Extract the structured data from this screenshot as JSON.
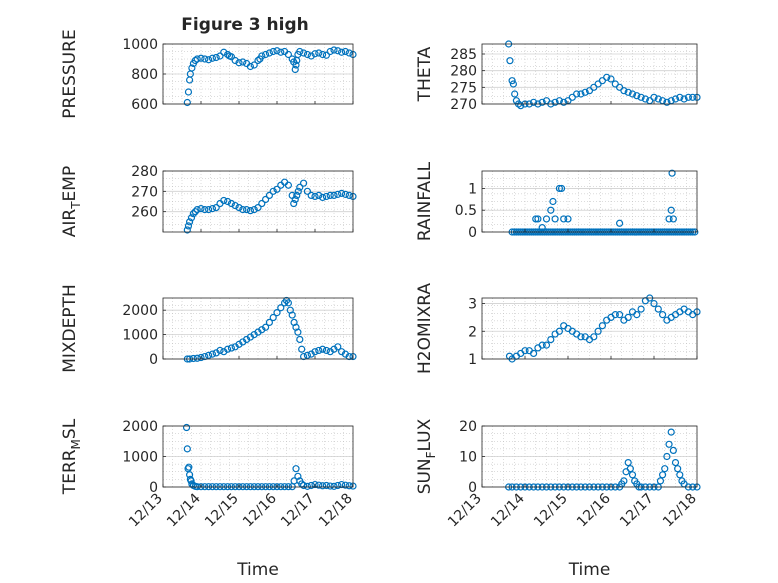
{
  "figure": {
    "title": "Figure 3 high"
  },
  "colors": {
    "marker": "#0072bd",
    "axis": "#262626",
    "grid": "#b8b8b8"
  },
  "chart_data": [
    {
      "type": "scatter",
      "title": "Figure 3 high",
      "ylabel": "PRESSURE",
      "xlim": [
        0,
        5
      ],
      "ylim": [
        600,
        1000
      ],
      "yticks": [
        600,
        800,
        1000
      ],
      "xticklabels": [],
      "xlabel": "",
      "grid": "on",
      "x": [
        0.64,
        0.67,
        0.7,
        0.72,
        0.76,
        0.8,
        0.85,
        0.9,
        1.0,
        1.1,
        1.2,
        1.3,
        1.4,
        1.5,
        1.6,
        1.7,
        1.75,
        1.8,
        1.9,
        2.0,
        2.1,
        2.2,
        2.3,
        2.4,
        2.5,
        2.55,
        2.6,
        2.7,
        2.8,
        2.9,
        3.0,
        3.1,
        3.2,
        3.3,
        3.4,
        3.44,
        3.48,
        3.5,
        3.52,
        3.55,
        3.6,
        3.7,
        3.8,
        3.9,
        4.0,
        4.1,
        4.2,
        4.3,
        4.4,
        4.5,
        4.6,
        4.7,
        4.8,
        4.9,
        5.0
      ],
      "y": [
        610,
        680,
        760,
        800,
        840,
        870,
        890,
        900,
        905,
        900,
        895,
        905,
        910,
        920,
        945,
        930,
        920,
        915,
        890,
        875,
        880,
        870,
        850,
        860,
        890,
        900,
        920,
        930,
        940,
        950,
        955,
        945,
        950,
        930,
        900,
        880,
        830,
        860,
        890,
        930,
        950,
        940,
        930,
        920,
        935,
        940,
        930,
        925,
        950,
        960,
        955,
        945,
        950,
        940,
        930
      ]
    },
    {
      "type": "scatter",
      "ylabel": "THETA",
      "xlim": [
        0,
        5
      ],
      "ylim": [
        270,
        288
      ],
      "yticks": [
        270,
        275,
        280,
        285
      ],
      "xticklabels": [],
      "xlabel": "",
      "grid": "on",
      "x": [
        0.62,
        0.65,
        0.7,
        0.73,
        0.76,
        0.8,
        0.85,
        0.9,
        1.0,
        1.1,
        1.2,
        1.3,
        1.4,
        1.5,
        1.6,
        1.7,
        1.8,
        1.9,
        2.0,
        2.1,
        2.2,
        2.3,
        2.4,
        2.5,
        2.6,
        2.7,
        2.8,
        2.9,
        3.0,
        3.1,
        3.2,
        3.3,
        3.4,
        3.5,
        3.6,
        3.7,
        3.8,
        3.9,
        4.0,
        4.1,
        4.2,
        4.3,
        4.4,
        4.5,
        4.6,
        4.7,
        4.8,
        4.9,
        5.0
      ],
      "y": [
        288,
        283,
        277,
        276,
        273,
        271,
        270,
        269.5,
        270,
        270,
        270.5,
        270,
        270.5,
        271,
        270,
        270.5,
        271,
        270.5,
        271,
        272,
        273,
        273,
        273.5,
        274,
        275,
        276,
        277,
        278,
        277.5,
        276,
        275,
        274,
        273.5,
        273,
        272.5,
        272,
        271.5,
        271,
        272,
        271.5,
        271,
        270.5,
        271,
        271.5,
        272,
        271.5,
        272,
        272,
        272
      ]
    },
    {
      "type": "scatter",
      "ylabel": "AIR_TEMP",
      "ylabel_main": "AIR",
      "ylabel_sub": "T",
      "ylabel_rest": "EMP",
      "xlim": [
        0,
        5
      ],
      "ylim": [
        250,
        280
      ],
      "yticks": [
        260,
        270,
        280
      ],
      "xticklabels": [],
      "xlabel": "",
      "grid": "on",
      "x": [
        0.64,
        0.67,
        0.7,
        0.75,
        0.8,
        0.85,
        0.9,
        1.0,
        1.1,
        1.2,
        1.3,
        1.4,
        1.5,
        1.6,
        1.7,
        1.8,
        1.9,
        2.0,
        2.1,
        2.2,
        2.3,
        2.4,
        2.5,
        2.6,
        2.7,
        2.8,
        2.9,
        3.0,
        3.1,
        3.2,
        3.3,
        3.4,
        3.44,
        3.48,
        3.52,
        3.56,
        3.6,
        3.7,
        3.8,
        3.9,
        4.0,
        4.1,
        4.2,
        4.3,
        4.4,
        4.5,
        4.6,
        4.7,
        4.8,
        4.9,
        5.0
      ],
      "y": [
        251,
        253,
        255,
        257,
        259,
        260,
        261,
        261.5,
        261,
        261,
        261.5,
        262,
        264,
        265.5,
        265,
        264,
        263,
        262,
        261,
        261,
        260.5,
        261,
        262,
        264,
        266,
        268,
        270,
        271,
        273,
        274.5,
        273,
        268,
        264,
        266,
        268,
        270,
        272,
        274,
        270,
        268,
        267.5,
        268,
        267,
        267.5,
        268,
        268,
        268.5,
        269,
        268.5,
        268,
        267.5
      ]
    },
    {
      "type": "scatter",
      "ylabel": "RAINFALL",
      "xlim": [
        0,
        5
      ],
      "ylim": [
        0,
        1.4
      ],
      "yticks": [
        0,
        0.5,
        1
      ],
      "xticklabels": [],
      "xlabel": "",
      "grid": "on",
      "x": [
        0.7,
        0.75,
        0.8,
        0.85,
        0.9,
        0.95,
        1.0,
        1.05,
        1.1,
        1.15,
        1.2,
        1.25,
        1.3,
        1.35,
        1.4,
        1.45,
        1.5,
        1.55,
        1.6,
        1.65,
        1.7,
        1.75,
        1.8,
        1.85,
        1.9,
        1.95,
        2.0,
        2.05,
        2.1,
        2.15,
        2.2,
        2.25,
        2.3,
        2.35,
        2.4,
        2.45,
        2.5,
        2.55,
        2.6,
        2.65,
        2.7,
        2.75,
        2.8,
        2.85,
        2.9,
        2.95,
        3.0,
        3.05,
        3.1,
        3.15,
        3.2,
        3.25,
        3.3,
        3.35,
        3.4,
        3.45,
        3.5,
        3.55,
        3.6,
        3.65,
        3.7,
        3.75,
        3.8,
        3.85,
        3.9,
        3.95,
        4.0,
        4.05,
        4.1,
        4.15,
        4.2,
        4.25,
        4.3,
        4.35,
        4.4,
        4.45,
        4.5,
        4.55,
        4.6,
        4.65,
        4.7,
        4.75,
        4.8,
        4.85,
        4.9,
        4.95,
        1.25,
        1.3,
        1.4,
        1.5,
        1.6,
        1.65,
        1.7,
        1.8,
        1.85,
        1.9,
        2.0,
        3.2,
        4.35,
        4.4,
        4.42,
        4.45
      ],
      "y": [
        0,
        0,
        0,
        0,
        0,
        0,
        0,
        0,
        0,
        0,
        0,
        0,
        0,
        0,
        0,
        0,
        0,
        0,
        0,
        0,
        0,
        0,
        0,
        0,
        0,
        0,
        0,
        0,
        0,
        0,
        0,
        0,
        0,
        0,
        0,
        0,
        0,
        0,
        0,
        0,
        0,
        0,
        0,
        0,
        0,
        0,
        0,
        0,
        0,
        0,
        0,
        0,
        0,
        0,
        0,
        0,
        0,
        0,
        0,
        0,
        0,
        0,
        0,
        0,
        0,
        0,
        0,
        0,
        0,
        0,
        0,
        0,
        0,
        0,
        0,
        0,
        0,
        0,
        0,
        0,
        0,
        0,
        0,
        0,
        0,
        0,
        0.3,
        0.3,
        0.1,
        0.3,
        0.5,
        0.7,
        0.3,
        1.0,
        1.0,
        0.3,
        0.3,
        0.2,
        0.3,
        0.5,
        1.35,
        0.3
      ]
    },
    {
      "type": "scatter",
      "ylabel": "MIXDEPTH",
      "xlim": [
        0,
        5
      ],
      "ylim": [
        0,
        2500
      ],
      "yticks": [
        0,
        1000,
        2000
      ],
      "xticklabels": [],
      "xlabel": "",
      "grid": "on",
      "x": [
        0.64,
        0.7,
        0.8,
        0.9,
        1.0,
        1.1,
        1.2,
        1.3,
        1.4,
        1.5,
        1.6,
        1.7,
        1.8,
        1.9,
        2.0,
        2.1,
        2.2,
        2.3,
        2.4,
        2.5,
        2.6,
        2.7,
        2.8,
        2.9,
        3.0,
        3.1,
        3.2,
        3.25,
        3.3,
        3.35,
        3.4,
        3.45,
        3.5,
        3.55,
        3.6,
        3.65,
        3.7,
        3.8,
        3.9,
        4.0,
        4.1,
        4.2,
        4.3,
        4.4,
        4.5,
        4.6,
        4.7,
        4.8,
        4.9,
        5.0
      ],
      "y": [
        0,
        0,
        20,
        30,
        60,
        100,
        150,
        200,
        250,
        350,
        300,
        400,
        450,
        500,
        600,
        700,
        800,
        900,
        1000,
        1100,
        1200,
        1300,
        1500,
        1700,
        1900,
        2100,
        2300,
        2400,
        2300,
        2000,
        1800,
        1500,
        1300,
        1100,
        800,
        400,
        100,
        150,
        200,
        300,
        350,
        400,
        350,
        300,
        400,
        500,
        300,
        200,
        100,
        100
      ]
    },
    {
      "type": "scatter",
      "ylabel": "H2OMIXRA",
      "xlim": [
        0,
        5
      ],
      "ylim": [
        1,
        3.2
      ],
      "yticks": [
        1,
        2,
        3
      ],
      "xticklabels": [],
      "xlabel": "",
      "grid": "on",
      "x": [
        0.64,
        0.7,
        0.8,
        0.9,
        1.0,
        1.1,
        1.2,
        1.3,
        1.4,
        1.5,
        1.6,
        1.7,
        1.8,
        1.9,
        2.0,
        2.1,
        2.2,
        2.3,
        2.4,
        2.5,
        2.6,
        2.7,
        2.8,
        2.9,
        3.0,
        3.1,
        3.2,
        3.3,
        3.4,
        3.5,
        3.6,
        3.7,
        3.8,
        3.9,
        4.0,
        4.1,
        4.2,
        4.3,
        4.4,
        4.5,
        4.6,
        4.7,
        4.8,
        4.9,
        5.0
      ],
      "y": [
        1.1,
        1.0,
        1.1,
        1.2,
        1.3,
        1.3,
        1.2,
        1.4,
        1.5,
        1.5,
        1.7,
        1.9,
        2.0,
        2.2,
        2.1,
        2.0,
        1.9,
        1.8,
        1.8,
        1.7,
        1.8,
        2.0,
        2.2,
        2.4,
        2.5,
        2.6,
        2.6,
        2.4,
        2.5,
        2.7,
        2.6,
        2.8,
        3.1,
        3.2,
        3.0,
        2.8,
        2.6,
        2.4,
        2.5,
        2.6,
        2.7,
        2.8,
        2.7,
        2.6,
        2.7
      ]
    },
    {
      "type": "scatter",
      "ylabel": "TERR_MSL",
      "ylabel_main": "TERR",
      "ylabel_sub": "M",
      "ylabel_rest": "SL",
      "xlim": [
        0,
        5
      ],
      "ylim": [
        0,
        2000
      ],
      "yticks": [
        0,
        1000,
        2000
      ],
      "xticklabels": [
        "12/13",
        "12/14",
        "12/15",
        "12/16",
        "12/17",
        "12/18"
      ],
      "xlabel": "Time",
      "grid": "on",
      "x": [
        0.62,
        0.64,
        0.66,
        0.68,
        0.7,
        0.72,
        0.74,
        0.76,
        0.8,
        0.85,
        0.9,
        1.0,
        1.1,
        1.2,
        1.3,
        1.4,
        1.5,
        1.6,
        1.7,
        1.8,
        1.9,
        2.0,
        2.1,
        2.2,
        2.3,
        2.4,
        2.5,
        2.6,
        2.7,
        2.8,
        2.9,
        3.0,
        3.1,
        3.2,
        3.3,
        3.4,
        3.45,
        3.5,
        3.55,
        3.6,
        3.65,
        3.7,
        3.8,
        3.9,
        4.0,
        4.1,
        4.2,
        4.3,
        4.4,
        4.5,
        4.6,
        4.7,
        4.8,
        4.9,
        5.0
      ],
      "y": [
        1950,
        1250,
        600,
        650,
        400,
        250,
        200,
        100,
        50,
        20,
        10,
        10,
        10,
        10,
        10,
        10,
        10,
        10,
        10,
        10,
        10,
        10,
        10,
        10,
        10,
        10,
        10,
        10,
        10,
        10,
        10,
        10,
        10,
        10,
        10,
        10,
        200,
        600,
        350,
        200,
        100,
        50,
        20,
        50,
        80,
        60,
        40,
        50,
        30,
        20,
        50,
        80,
        60,
        40,
        30
      ]
    },
    {
      "type": "scatter",
      "ylabel": "SUN_FLUX",
      "ylabel_main": "SUN",
      "ylabel_sub": "F",
      "ylabel_rest": "LUX",
      "xlim": [
        0,
        5
      ],
      "ylim": [
        0,
        20
      ],
      "yticks": [
        0,
        10,
        20
      ],
      "xticklabels": [
        "12/13",
        "12/14",
        "12/15",
        "12/16",
        "12/17",
        "12/18"
      ],
      "xlabel": "Time",
      "grid": "on",
      "x": [
        0.62,
        0.7,
        0.8,
        0.9,
        1.0,
        1.1,
        1.2,
        1.3,
        1.4,
        1.5,
        1.6,
        1.7,
        1.8,
        1.9,
        2.0,
        2.1,
        2.2,
        2.3,
        2.4,
        2.5,
        2.6,
        2.7,
        2.8,
        2.9,
        3.0,
        3.1,
        3.2,
        3.25,
        3.3,
        3.35,
        3.4,
        3.45,
        3.5,
        3.55,
        3.6,
        3.65,
        3.7,
        3.8,
        3.9,
        4.0,
        4.1,
        4.15,
        4.2,
        4.25,
        4.3,
        4.35,
        4.4,
        4.45,
        4.5,
        4.55,
        4.6,
        4.65,
        4.7,
        4.8,
        4.9,
        5.0
      ],
      "y": [
        0,
        0,
        0,
        0,
        0,
        0,
        0,
        0,
        0,
        0,
        0,
        0,
        0,
        0,
        0,
        0,
        0,
        0,
        0,
        0,
        0,
        0,
        0,
        0,
        0,
        0,
        0,
        1,
        2,
        5,
        8,
        6,
        4,
        2,
        1,
        0,
        0,
        0,
        0,
        0,
        0,
        2,
        4,
        6,
        10,
        14,
        18,
        12,
        8,
        6,
        4,
        2,
        1,
        0,
        0,
        0
      ]
    }
  ]
}
